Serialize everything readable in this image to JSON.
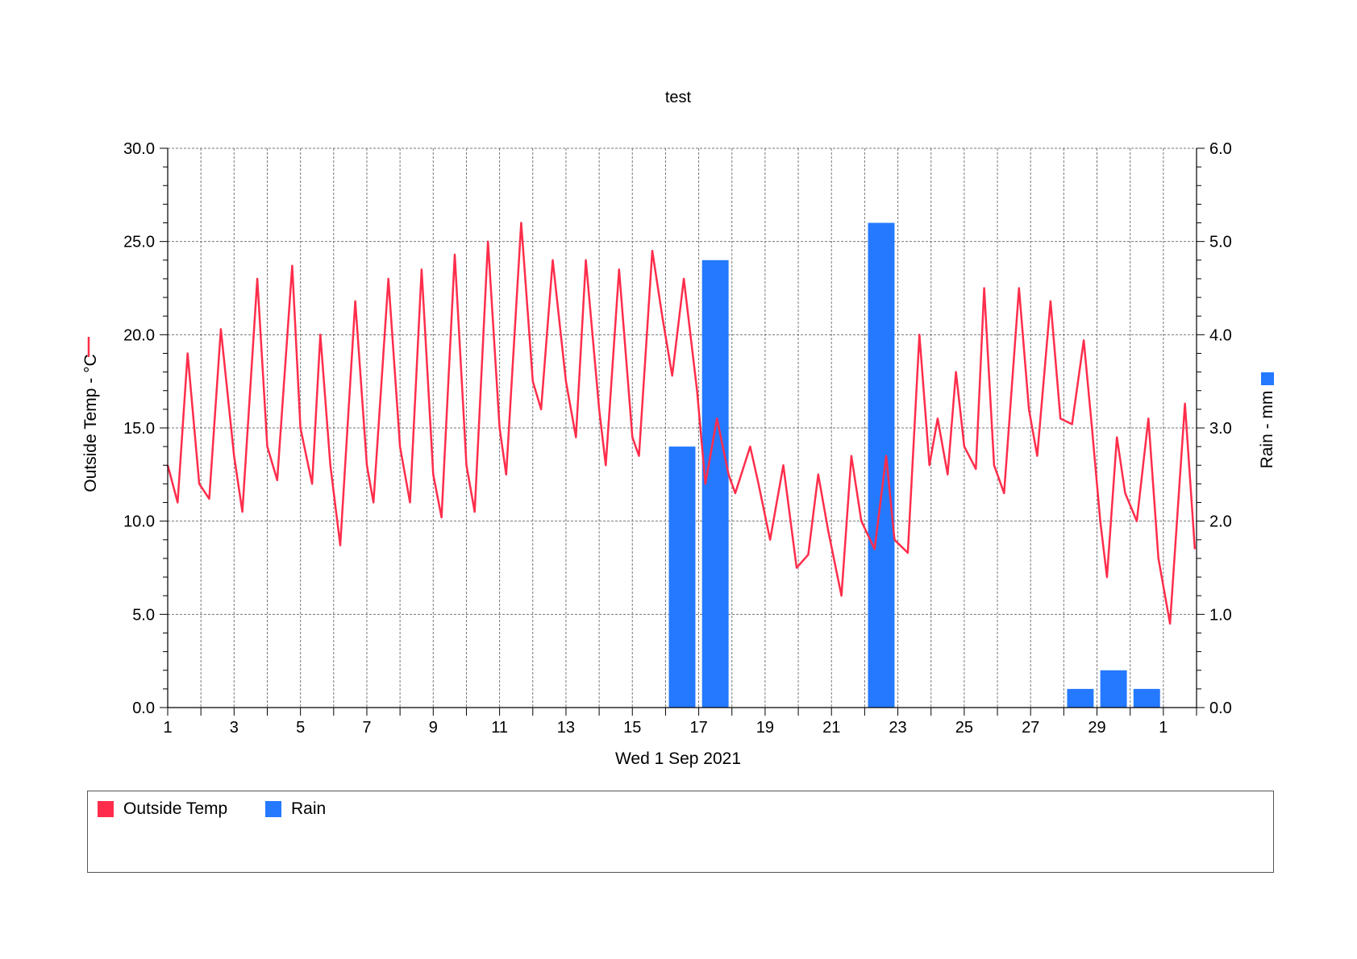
{
  "chart_data": {
    "type": "line+bar",
    "title": "test",
    "xlabel": "Wed 1 Sep 2021",
    "x_tick_labels": [
      "1",
      "3",
      "5",
      "7",
      "9",
      "11",
      "13",
      "15",
      "17",
      "19",
      "21",
      "23",
      "25",
      "27",
      "29",
      "1"
    ],
    "x_range_days": [
      1,
      32
    ],
    "grid": true,
    "y_left": {
      "label": "Outside Temp - °C",
      "range": [
        0,
        30
      ],
      "tick_labels": [
        "0.0",
        "5.0",
        "10.0",
        "15.0",
        "20.0",
        "25.0",
        "30.0"
      ]
    },
    "y_right": {
      "label": "Rain - mm",
      "range": [
        0,
        6
      ],
      "tick_labels": [
        "0.0",
        "1.0",
        "2.0",
        "3.0",
        "4.0",
        "5.0",
        "6.0"
      ]
    },
    "series": [
      {
        "name": "Outside Temp",
        "kind": "line",
        "axis": "left",
        "color": "#ff2d4b",
        "points": [
          [
            1.0,
            13.0
          ],
          [
            1.3,
            11.0
          ],
          [
            1.6,
            19.0
          ],
          [
            1.95,
            12.0
          ],
          [
            2.25,
            11.2
          ],
          [
            2.6,
            20.3
          ],
          [
            3.0,
            13.5
          ],
          [
            3.25,
            10.5
          ],
          [
            3.7,
            23.0
          ],
          [
            4.0,
            14.0
          ],
          [
            4.3,
            12.2
          ],
          [
            4.75,
            23.7
          ],
          [
            5.0,
            15.0
          ],
          [
            5.35,
            12.0
          ],
          [
            5.6,
            20.0
          ],
          [
            5.9,
            13.0
          ],
          [
            6.2,
            8.7
          ],
          [
            6.65,
            21.8
          ],
          [
            7.0,
            13.0
          ],
          [
            7.2,
            11.0
          ],
          [
            7.65,
            23.0
          ],
          [
            8.0,
            14.0
          ],
          [
            8.3,
            11.0
          ],
          [
            8.65,
            23.5
          ],
          [
            9.0,
            12.5
          ],
          [
            9.25,
            10.2
          ],
          [
            9.65,
            24.3
          ],
          [
            10.0,
            13.0
          ],
          [
            10.25,
            10.5
          ],
          [
            10.65,
            25.0
          ],
          [
            11.0,
            15.0
          ],
          [
            11.2,
            12.5
          ],
          [
            11.65,
            26.0
          ],
          [
            12.0,
            17.5
          ],
          [
            12.25,
            16.0
          ],
          [
            12.6,
            24.0
          ],
          [
            13.0,
            17.5
          ],
          [
            13.3,
            14.5
          ],
          [
            13.6,
            24.0
          ],
          [
            14.0,
            16.0
          ],
          [
            14.2,
            13.0
          ],
          [
            14.6,
            23.5
          ],
          [
            15.0,
            14.5
          ],
          [
            15.2,
            13.5
          ],
          [
            15.6,
            24.5
          ],
          [
            15.9,
            21.0
          ],
          [
            16.2,
            17.8
          ],
          [
            16.55,
            23.0
          ],
          [
            16.95,
            17.0
          ],
          [
            17.2,
            12.0
          ],
          [
            17.55,
            15.5
          ],
          [
            17.9,
            12.5
          ],
          [
            18.1,
            11.5
          ],
          [
            18.55,
            14.0
          ],
          [
            18.8,
            12.0
          ],
          [
            19.15,
            9.0
          ],
          [
            19.55,
            13.0
          ],
          [
            19.95,
            7.5
          ],
          [
            20.3,
            8.2
          ],
          [
            20.6,
            12.5
          ],
          [
            20.9,
            9.5
          ],
          [
            21.3,
            6.0
          ],
          [
            21.6,
            13.5
          ],
          [
            21.9,
            10.0
          ],
          [
            22.3,
            8.5
          ],
          [
            22.65,
            13.5
          ],
          [
            22.9,
            9.0
          ],
          [
            23.3,
            8.3
          ],
          [
            23.65,
            20.0
          ],
          [
            23.95,
            13.0
          ],
          [
            24.2,
            15.5
          ],
          [
            24.5,
            12.5
          ],
          [
            24.75,
            18.0
          ],
          [
            25.0,
            14.0
          ],
          [
            25.35,
            12.8
          ],
          [
            25.6,
            22.5
          ],
          [
            25.9,
            13.0
          ],
          [
            26.2,
            11.5
          ],
          [
            26.65,
            22.5
          ],
          [
            26.95,
            16.0
          ],
          [
            27.2,
            13.5
          ],
          [
            27.6,
            21.8
          ],
          [
            27.9,
            15.5
          ],
          [
            28.25,
            15.2
          ],
          [
            28.6,
            19.7
          ],
          [
            28.85,
            15.0
          ],
          [
            29.1,
            10.0
          ],
          [
            29.3,
            7.0
          ],
          [
            29.6,
            14.5
          ],
          [
            29.85,
            11.5
          ],
          [
            30.2,
            10.0
          ],
          [
            30.55,
            15.5
          ],
          [
            30.85,
            8.0
          ],
          [
            31.2,
            4.5
          ],
          [
            31.65,
            16.3
          ],
          [
            31.95,
            8.5
          ]
        ]
      },
      {
        "name": "Rain",
        "kind": "bar",
        "axis": "right",
        "color": "#2479ff",
        "bars": [
          {
            "day": 16.5,
            "mm": 2.8
          },
          {
            "day": 17.5,
            "mm": 4.8
          },
          {
            "day": 22.5,
            "mm": 5.2
          },
          {
            "day": 28.5,
            "mm": 0.2
          },
          {
            "day": 29.5,
            "mm": 0.4
          },
          {
            "day": 30.5,
            "mm": 0.2
          }
        ]
      }
    ],
    "legend": {
      "placement": "bottom",
      "entries": [
        "Outside Temp",
        "Rain"
      ]
    }
  }
}
